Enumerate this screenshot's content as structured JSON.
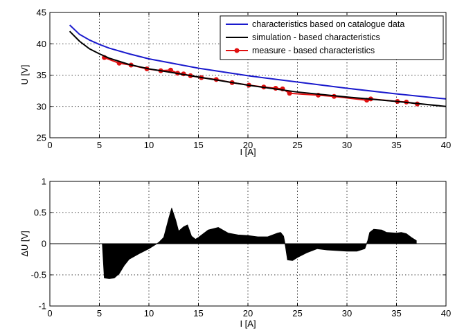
{
  "chart_data": [
    {
      "type": "line",
      "xlabel": "I [A]",
      "ylabel": "U [V]",
      "xlim": [
        0,
        40
      ],
      "ylim": [
        25,
        45
      ],
      "xticks": [
        0,
        5,
        10,
        15,
        20,
        25,
        30,
        35,
        40
      ],
      "yticks": [
        25,
        30,
        35,
        40,
        45
      ],
      "grid": true,
      "legend_position": "top-right",
      "series": [
        {
          "name": "characteristics based on catalogue data",
          "color": "#1a1acd",
          "marker": "none",
          "x": [
            2,
            3,
            4,
            5,
            6,
            8,
            10,
            12,
            15,
            20,
            25,
            30,
            35,
            40
          ],
          "y": [
            43.0,
            41.5,
            40.6,
            39.9,
            39.3,
            38.4,
            37.6,
            37.0,
            36.1,
            34.9,
            33.9,
            32.9,
            32.0,
            31.2
          ]
        },
        {
          "name": "simulation - based characteristics",
          "color": "#000000",
          "marker": "none",
          "x": [
            2,
            3,
            4,
            5,
            6,
            8,
            10,
            12,
            15,
            20,
            25,
            30,
            35,
            40
          ],
          "y": [
            42.0,
            40.4,
            39.2,
            38.4,
            37.7,
            36.7,
            36.0,
            35.5,
            34.7,
            33.4,
            32.3,
            31.5,
            30.8,
            30.0
          ]
        },
        {
          "name": "measure - based characteristics",
          "color": "#e01010",
          "marker": "circle",
          "x": [
            5.5,
            7.0,
            8.2,
            9.8,
            11.2,
            12.2,
            12.9,
            13.5,
            14.2,
            15.3,
            16.8,
            18.4,
            20.1,
            21.6,
            22.8,
            23.5,
            24.2,
            27.1,
            28.7,
            32.0,
            32.4,
            35.1,
            36.0,
            37.1
          ],
          "y": [
            37.8,
            36.9,
            36.6,
            36.0,
            35.7,
            35.8,
            35.3,
            35.2,
            34.9,
            34.6,
            34.3,
            33.8,
            33.4,
            33.1,
            32.9,
            32.8,
            32.1,
            31.8,
            31.6,
            31.0,
            31.2,
            30.8,
            30.7,
            30.4
          ]
        }
      ]
    },
    {
      "type": "area",
      "xlabel": "I [A]",
      "ylabel": "ΔU [V]",
      "xlim": [
        0,
        40
      ],
      "ylim": [
        -1,
        1
      ],
      "xticks": [
        0,
        5,
        10,
        15,
        20,
        25,
        30,
        35,
        40
      ],
      "yticks": [
        -1,
        -0.5,
        0,
        0.5,
        1
      ],
      "grid": true,
      "series": [
        {
          "color": "#000000",
          "x": [
            5.3,
            5.5,
            6.0,
            6.5,
            7.0,
            7.5,
            8.0,
            9.0,
            10.0,
            10.5,
            11.0,
            11.5,
            12.0,
            12.3,
            12.7,
            13.0,
            13.5,
            13.9,
            14.3,
            14.7,
            15.0,
            16.0,
            17.0,
            18.0,
            19.0,
            20.0,
            21.0,
            22.0,
            23.0,
            23.3,
            23.6,
            23.8,
            24.0,
            24.5,
            25.0,
            26.0,
            27.0,
            28.0,
            29.0,
            30.0,
            31.0,
            31.8,
            32.1,
            32.3,
            32.7,
            33.5,
            34.0,
            35.0,
            35.5,
            36.0,
            36.5,
            37.0
          ],
          "y": [
            0,
            -0.55,
            -0.56,
            -0.55,
            -0.48,
            -0.35,
            -0.25,
            -0.16,
            -0.08,
            -0.03,
            0.02,
            0.1,
            0.4,
            0.57,
            0.38,
            0.2,
            0.27,
            0.3,
            0.12,
            0.07,
            0.1,
            0.22,
            0.26,
            0.17,
            0.14,
            0.13,
            0.11,
            0.11,
            0.17,
            0.18,
            0.12,
            -0.05,
            -0.26,
            -0.27,
            -0.22,
            -0.14,
            -0.08,
            -0.1,
            -0.11,
            -0.12,
            -0.12,
            -0.08,
            0.05,
            0.18,
            0.23,
            0.22,
            0.18,
            0.17,
            0.18,
            0.16,
            0.1,
            0.05
          ]
        }
      ]
    }
  ]
}
